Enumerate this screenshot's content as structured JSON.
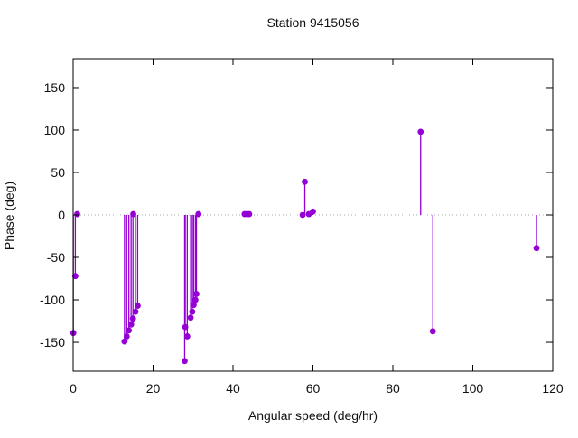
{
  "title": "Station 9415056",
  "chart_data": {
    "type": "stem",
    "title": "Station 9415056",
    "xlabel": "Angular speed (deg/hr)",
    "ylabel": "Phase (deg)",
    "xlim": [
      0,
      120
    ],
    "ylim": [
      -184,
      184
    ],
    "xticks": [
      0,
      20,
      40,
      60,
      80,
      100,
      120
    ],
    "yticks": [
      -150,
      -100,
      -50,
      0,
      50,
      100,
      150
    ],
    "grid": false,
    "legend": "none",
    "zero_line": true,
    "zero_line_color": "#a8a8a8",
    "border_color": "#000000",
    "point_color": "#9400d3",
    "points": [
      [
        0.04,
        -139
      ],
      [
        0.54,
        -72
      ],
      [
        1.02,
        1
      ],
      [
        12.85,
        -149
      ],
      [
        13.4,
        -143
      ],
      [
        13.94,
        -136
      ],
      [
        14.5,
        -129
      ],
      [
        14.96,
        -122
      ],
      [
        15.04,
        1
      ],
      [
        15.59,
        -114
      ],
      [
        16.14,
        -107
      ],
      [
        27.9,
        -172
      ],
      [
        28.05,
        -132
      ],
      [
        28.55,
        -143
      ],
      [
        29.4,
        -121
      ],
      [
        29.8,
        -114
      ],
      [
        30.15,
        -106
      ],
      [
        30.6,
        -100
      ],
      [
        30.85,
        -93
      ],
      [
        31.35,
        1
      ],
      [
        42.9,
        1
      ],
      [
        43.5,
        1
      ],
      [
        44.05,
        1
      ],
      [
        57.42,
        0
      ],
      [
        57.97,
        39
      ],
      [
        58.98,
        1
      ],
      [
        60.0,
        4
      ],
      [
        86.95,
        98
      ],
      [
        90.0,
        -137
      ],
      [
        115.94,
        -39
      ]
    ]
  }
}
